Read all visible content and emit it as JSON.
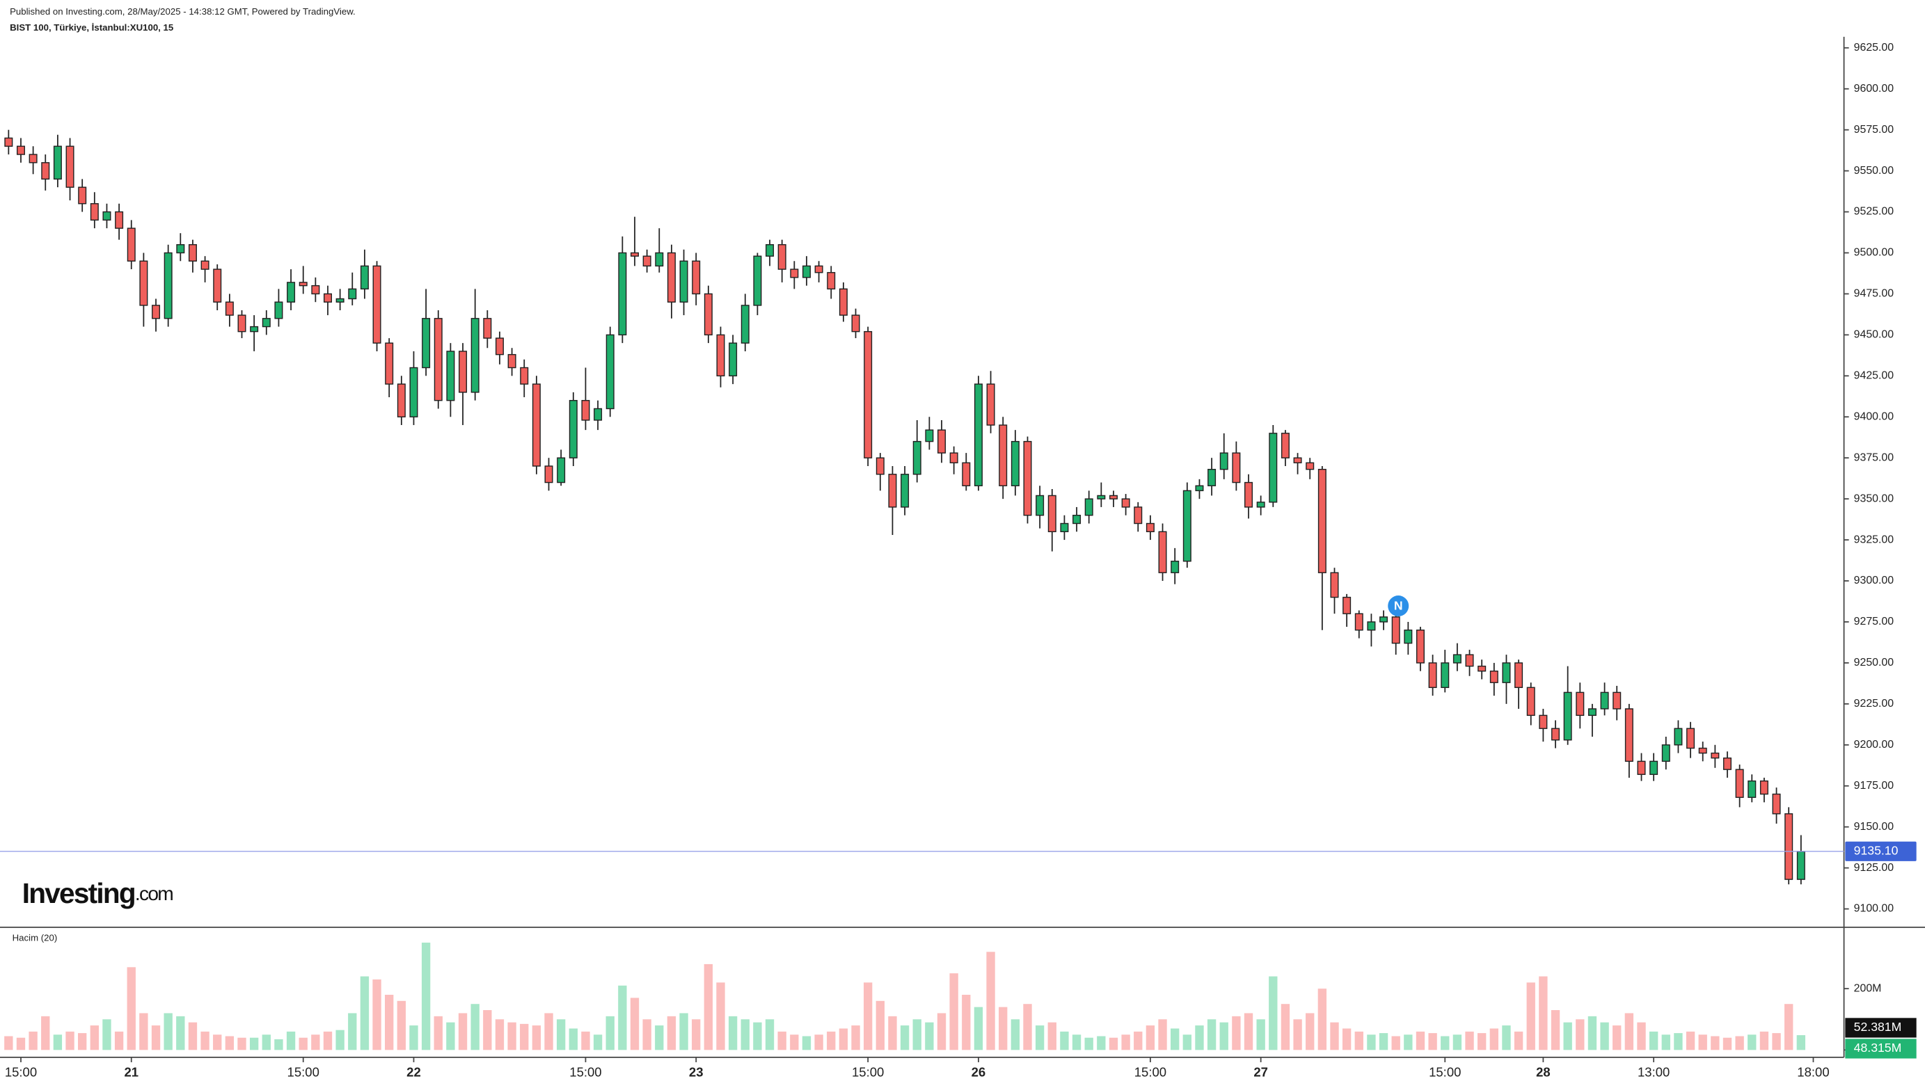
{
  "chart_data": {
    "type": "candlestick",
    "header": "Published on Investing.com, 28/May/2025 - 14:38:12 GMT, Powered by TradingView.",
    "title": "BIST 100, Türkiye, İstanbul:XU100, 15",
    "logo": {
      "name": "Investing",
      "suffix": ".com"
    },
    "volume_title": "Hacim (20)",
    "marker": "N",
    "up_color": "#1fae6b",
    "down_color": "#ef5f5b",
    "volume_up_color": "#a6e6c8",
    "volume_down_color": "#fbbdbc",
    "categories": [
      null,
      "15:00",
      null,
      null,
      null,
      null,
      null,
      null,
      null,
      null,
      "21",
      null,
      null,
      null,
      null,
      null,
      null,
      null,
      null,
      null,
      null,
      null,
      null,
      null,
      "15:00",
      null,
      null,
      null,
      null,
      null,
      null,
      null,
      null,
      "22",
      null,
      null,
      null,
      null,
      null,
      null,
      null,
      null,
      null,
      null,
      null,
      null,
      null,
      "15:00",
      null,
      null,
      null,
      null,
      null,
      null,
      null,
      null,
      "23",
      null,
      null,
      null,
      null,
      null,
      null,
      null,
      null,
      null,
      null,
      null,
      null,
      null,
      "15:00",
      null,
      null,
      null,
      null,
      null,
      null,
      null,
      null,
      "26",
      null,
      null,
      null,
      null,
      null,
      null,
      null,
      null,
      null,
      null,
      null,
      null,
      null,
      "15:00",
      null,
      null,
      null,
      null,
      null,
      null,
      null,
      null,
      "27",
      null,
      null,
      null,
      null,
      null,
      null,
      null,
      null,
      null,
      null,
      null,
      null,
      null,
      null,
      "15:00",
      null,
      null,
      null,
      null,
      null,
      null,
      null,
      "28",
      null,
      null,
      null,
      null,
      null,
      null,
      null,
      null,
      "13:00",
      null,
      null,
      null,
      null,
      null,
      null,
      null,
      null,
      null,
      null,
      null,
      null,
      "18:00"
    ],
    "open": [
      9570,
      9565,
      9560,
      9555,
      9545,
      9565,
      9540,
      9530,
      9520,
      9525,
      9515,
      9495,
      9468,
      9460,
      9500,
      9505,
      9495,
      9490,
      9470,
      9462,
      9452,
      9455,
      9460,
      9470,
      9482,
      9480,
      9475,
      9470,
      9472,
      9478,
      9492,
      9445,
      9420,
      9400,
      9430,
      9460,
      9410,
      9440,
      9415,
      9460,
      9448,
      9438,
      9430,
      9420,
      9370,
      9360,
      9375,
      9410,
      9398,
      9405,
      9450,
      9500,
      9498,
      9492,
      9500,
      9470,
      9495,
      9475,
      9450,
      9425,
      9445,
      9468,
      9498,
      9505,
      9490,
      9485,
      9492,
      9488,
      9478,
      9462,
      9452,
      9375,
      9365,
      9345,
      9365,
      9385,
      9392,
      9378,
      9372,
      9358,
      9420,
      9395,
      9358,
      9385,
      9340,
      9352,
      9330,
      9335,
      9340,
      9350,
      9352,
      9350,
      9345,
      9335,
      9330,
      9305,
      9312,
      9355,
      9358,
      9368,
      9378,
      9360,
      9345,
      9348,
      9390,
      9375,
      9372,
      9368,
      9305,
      9290,
      9280,
      9270,
      9275,
      9278,
      9262,
      9270,
      9250,
      9235,
      9250,
      9255,
      9248,
      9245,
      9238,
      9250,
      9235,
      9218,
      9210,
      9203,
      9232,
      9218,
      9222,
      9232,
      9222,
      9190,
      9182,
      9190,
      9200,
      9210,
      9198,
      9195,
      9192,
      9185,
      9168,
      9178,
      9170,
      9158,
      9118,
      null
    ],
    "high": [
      9575,
      9570,
      9565,
      9560,
      9572,
      9570,
      9545,
      9537,
      9530,
      9530,
      9520,
      9500,
      9472,
      9505,
      9512,
      9508,
      9498,
      9493,
      9475,
      9465,
      9462,
      9465,
      9478,
      9490,
      9492,
      9485,
      9480,
      9478,
      9488,
      9502,
      9495,
      9448,
      9425,
      9440,
      9478,
      9465,
      9445,
      9445,
      9478,
      9465,
      9452,
      9442,
      9435,
      9425,
      9375,
      9380,
      9415,
      9430,
      9410,
      9455,
      9510,
      9522,
      9502,
      9515,
      9505,
      9502,
      9500,
      9480,
      9455,
      9450,
      9475,
      9500,
      9508,
      9508,
      9495,
      9498,
      9495,
      9492,
      9482,
      9466,
      9455,
      9378,
      9370,
      9370,
      9398,
      9400,
      9398,
      9382,
      9378,
      9425,
      9428,
      9400,
      9392,
      9388,
      9358,
      9356,
      9340,
      9345,
      9355,
      9360,
      9355,
      9353,
      9348,
      9340,
      9335,
      9320,
      9360,
      9362,
      9375,
      9390,
      9385,
      9365,
      9352,
      9395,
      9392,
      9378,
      9375,
      9370,
      9308,
      9292,
      9282,
      9280,
      9282,
      9282,
      9275,
      9272,
      9255,
      9258,
      9262,
      9258,
      9252,
      9250,
      9255,
      9252,
      9238,
      9222,
      9215,
      9248,
      9238,
      9225,
      9238,
      9236,
      9225,
      9195,
      9195,
      9205,
      9215,
      9214,
      9202,
      9200,
      9196,
      9188,
      9182,
      9180,
      9174,
      9162,
      9145,
      null
    ],
    "low": [
      9560,
      9555,
      9548,
      9538,
      9540,
      9532,
      9525,
      9515,
      9515,
      9508,
      9490,
      9455,
      9452,
      9455,
      9495,
      9488,
      9482,
      9465,
      9455,
      9448,
      9440,
      9450,
      9455,
      9465,
      9475,
      9470,
      9462,
      9465,
      9468,
      9472,
      9440,
      9412,
      9395,
      9395,
      9425,
      9405,
      9400,
      9395,
      9410,
      9442,
      9432,
      9425,
      9412,
      9365,
      9355,
      9358,
      9370,
      9392,
      9392,
      9400,
      9445,
      9492,
      9488,
      9488,
      9460,
      9462,
      9468,
      9445,
      9418,
      9420,
      9440,
      9462,
      9492,
      9482,
      9478,
      9480,
      9482,
      9472,
      9458,
      9448,
      9370,
      9355,
      9328,
      9340,
      9360,
      9380,
      9372,
      9365,
      9355,
      9355,
      9390,
      9350,
      9352,
      9335,
      9332,
      9318,
      9325,
      9330,
      9335,
      9345,
      9345,
      9340,
      9330,
      9325,
      9300,
      9298,
      9308,
      9350,
      9352,
      9362,
      9355,
      9338,
      9340,
      9345,
      9370,
      9365,
      9362,
      9270,
      9280,
      9272,
      9265,
      9260,
      9270,
      9255,
      9255,
      9245,
      9230,
      9232,
      9245,
      9242,
      9240,
      9230,
      9225,
      9222,
      9212,
      9202,
      9198,
      9200,
      9210,
      9205,
      9218,
      9215,
      9180,
      9178,
      9178,
      9185,
      9195,
      9192,
      9190,
      9186,
      9180,
      9162,
      9165,
      9165,
      9152,
      9115,
      9115,
      null
    ],
    "close": [
      9565,
      9560,
      9555,
      9545,
      9565,
      9540,
      9530,
      9520,
      9525,
      9515,
      9495,
      9468,
      9460,
      9500,
      9505,
      9495,
      9490,
      9470,
      9462,
      9452,
      9455,
      9460,
      9470,
      9482,
      9480,
      9475,
      9470,
      9472,
      9478,
      9492,
      9445,
      9420,
      9400,
      9430,
      9460,
      9410,
      9440,
      9415,
      9460,
      9448,
      9438,
      9430,
      9420,
      9370,
      9360,
      9375,
      9410,
      9398,
      9405,
      9450,
      9500,
      9498,
      9492,
      9500,
      9470,
      9495,
      9475,
      9450,
      9425,
      9445,
      9468,
      9498,
      9505,
      9490,
      9485,
      9492,
      9488,
      9478,
      9462,
      9452,
      9375,
      9365,
      9345,
      9365,
      9385,
      9392,
      9378,
      9372,
      9358,
      9420,
      9395,
      9358,
      9385,
      9340,
      9352,
      9330,
      9335,
      9340,
      9350,
      9352,
      9350,
      9345,
      9335,
      9330,
      9305,
      9312,
      9355,
      9358,
      9368,
      9378,
      9360,
      9345,
      9348,
      9390,
      9375,
      9372,
      9368,
      9305,
      9290,
      9280,
      9270,
      9275,
      9278,
      9262,
      9270,
      9250,
      9235,
      9250,
      9255,
      9248,
      9245,
      9238,
      9250,
      9235,
      9218,
      9210,
      9203,
      9232,
      9218,
      9222,
      9232,
      9222,
      9190,
      9182,
      9190,
      9200,
      9210,
      9198,
      9195,
      9192,
      9185,
      9168,
      9178,
      9170,
      9158,
      9118,
      9135,
      null
    ],
    "volume": [
      45,
      40,
      60,
      110,
      50,
      60,
      55,
      80,
      100,
      60,
      270,
      120,
      80,
      120,
      110,
      90,
      60,
      50,
      45,
      40,
      40,
      50,
      35,
      60,
      40,
      50,
      60,
      65,
      120,
      240,
      230,
      180,
      160,
      80,
      350,
      110,
      90,
      120,
      150,
      130,
      100,
      90,
      85,
      80,
      120,
      100,
      70,
      60,
      50,
      110,
      210,
      170,
      100,
      80,
      110,
      120,
      100,
      280,
      220,
      110,
      100,
      90,
      100,
      60,
      50,
      45,
      50,
      60,
      70,
      80,
      220,
      160,
      110,
      80,
      100,
      90,
      120,
      250,
      180,
      140,
      320,
      140,
      100,
      150,
      80,
      90,
      60,
      50,
      40,
      45,
      40,
      50,
      60,
      80,
      100,
      70,
      50,
      80,
      100,
      90,
      110,
      120,
      100,
      240,
      150,
      100,
      120,
      200,
      90,
      70,
      60,
      50,
      55,
      45,
      50,
      60,
      55,
      45,
      50,
      60,
      55,
      70,
      80,
      60,
      220,
      240,
      130,
      90,
      100,
      110,
      90,
      80,
      120,
      90,
      60,
      50,
      55,
      60,
      50,
      45,
      40,
      45,
      50,
      60,
      55,
      150,
      48.315,
      null
    ],
    "ylim": [
      9088,
      9635
    ],
    "yticks": [
      {
        "value": 9100,
        "label": "9100.00"
      },
      {
        "value": 9125,
        "label": "9125.00"
      },
      {
        "value": 9150,
        "label": "9150.00"
      },
      {
        "value": 9175,
        "label": "9175.00"
      },
      {
        "value": 9200,
        "label": "9200.00"
      },
      {
        "value": 9225,
        "label": "9225.00"
      },
      {
        "value": 9250,
        "label": "9250.00"
      },
      {
        "value": 9275,
        "label": "9275.00"
      },
      {
        "value": 9300,
        "label": "9300.00"
      },
      {
        "value": 9325,
        "label": "9325.00"
      },
      {
        "value": 9350,
        "label": "9350.00"
      },
      {
        "value": 9375,
        "label": "9375.00"
      },
      {
        "value": 9400,
        "label": "9400.00"
      },
      {
        "value": 9425,
        "label": "9425.00"
      },
      {
        "value": 9450,
        "label": "9450.00"
      },
      {
        "value": 9475,
        "label": "9475.00"
      },
      {
        "value": 9500,
        "label": "9500.00"
      },
      {
        "value": 9525,
        "label": "9525.00"
      },
      {
        "value": 9550,
        "label": "9550.00"
      },
      {
        "value": 9575,
        "label": "9575.00"
      },
      {
        "value": 9600,
        "label": "9600.00"
      },
      {
        "value": 9625,
        "label": "9625.00"
      }
    ],
    "y2lim": [
      0,
      380
    ],
    "y2ticks": [
      0,
      {
        "value": 200,
        "label": "200M"
      }
    ],
    "last_price": {
      "value": 9135.1,
      "label": "9135.10"
    },
    "volume_ma": {
      "value": 52.381,
      "label": "52.381M"
    },
    "last_volume_label": "48.315M"
  }
}
